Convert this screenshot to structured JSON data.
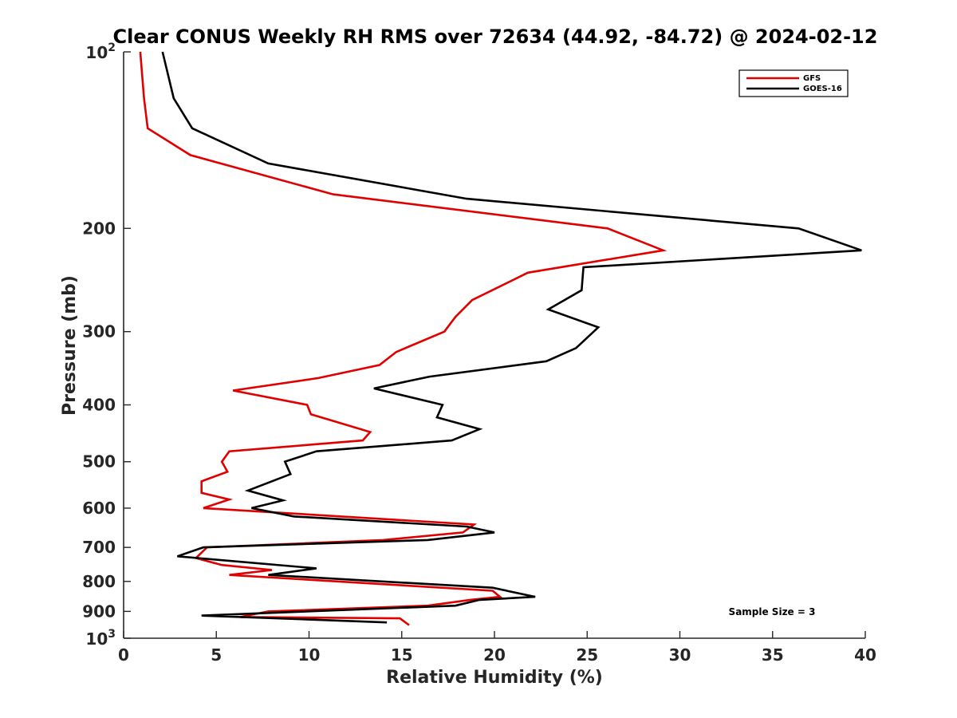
{
  "chart_data": {
    "type": "line",
    "title": "Clear CONUS Weekly RH RMS over 72634 (44.92, -84.72) @ 2024-02-12",
    "xlabel": "Relative Humidity (%)",
    "ylabel": "Pressure (mb)",
    "xlim": [
      0,
      40
    ],
    "ylim": [
      100,
      1000
    ],
    "yscale": "log",
    "y_reversed": true,
    "x_ticks": [
      0,
      5,
      10,
      15,
      20,
      25,
      30,
      35,
      40
    ],
    "x_tick_labels": [
      "0",
      "5",
      "10",
      "15",
      "20",
      "25",
      "30",
      "35",
      "40"
    ],
    "y_ticks": [
      100,
      200,
      300,
      400,
      500,
      600,
      700,
      800,
      900,
      1000
    ],
    "y_tick_labels": [
      {
        "base": "10",
        "exp": "2"
      },
      {
        "base": "200",
        "exp": ""
      },
      {
        "base": "300",
        "exp": ""
      },
      {
        "base": "400",
        "exp": ""
      },
      {
        "base": "500",
        "exp": ""
      },
      {
        "base": "600",
        "exp": ""
      },
      {
        "base": "700",
        "exp": ""
      },
      {
        "base": "800",
        "exp": ""
      },
      {
        "base": "900",
        "exp": ""
      },
      {
        "base": "10",
        "exp": "3"
      }
    ],
    "grid": false,
    "legend_position": "top-right",
    "annotation": "Sample Size = 3",
    "series": [
      {
        "name": "GFS",
        "color": "#e00000",
        "points": [
          [
            0.9,
            100
          ],
          [
            1.1,
            120
          ],
          [
            1.3,
            135
          ],
          [
            3.6,
            150
          ],
          [
            11.3,
            175
          ],
          [
            26.1,
            200
          ],
          [
            29.1,
            218
          ],
          [
            21.8,
            238
          ],
          [
            18.8,
            265
          ],
          [
            17.9,
            283
          ],
          [
            17.3,
            300
          ],
          [
            14.7,
            325
          ],
          [
            13.8,
            342
          ],
          [
            10.5,
            360
          ],
          [
            5.9,
            378
          ],
          [
            9.9,
            400
          ],
          [
            10.1,
            415
          ],
          [
            13.3,
            445
          ],
          [
            12.9,
            460
          ],
          [
            5.7,
            480
          ],
          [
            5.3,
            500
          ],
          [
            5.6,
            520
          ],
          [
            4.2,
            540
          ],
          [
            4.2,
            565
          ],
          [
            5.7,
            580
          ],
          [
            4.3,
            600
          ],
          [
            18.9,
            640
          ],
          [
            18.3,
            660
          ],
          [
            14.0,
            680
          ],
          [
            4.5,
            700
          ],
          [
            3.9,
            730
          ],
          [
            5.3,
            750
          ],
          [
            8.0,
            765
          ],
          [
            5.7,
            780
          ],
          [
            19.9,
            830
          ],
          [
            20.3,
            850
          ],
          [
            18.7,
            860
          ],
          [
            16.4,
            880
          ],
          [
            7.8,
            900
          ],
          [
            6.3,
            920
          ],
          [
            14.9,
            925
          ],
          [
            15.4,
            950
          ]
        ]
      },
      {
        "name": "GOES-16",
        "color": "#000000",
        "points": [
          [
            2.1,
            100
          ],
          [
            2.7,
            120
          ],
          [
            3.7,
            135
          ],
          [
            7.8,
            155
          ],
          [
            18.5,
            178
          ],
          [
            36.4,
            200
          ],
          [
            39.8,
            218
          ],
          [
            24.8,
            233
          ],
          [
            24.7,
            255
          ],
          [
            22.9,
            275
          ],
          [
            25.6,
            295
          ],
          [
            24.4,
            320
          ],
          [
            22.8,
            337
          ],
          [
            16.5,
            358
          ],
          [
            13.5,
            375
          ],
          [
            17.2,
            400
          ],
          [
            16.9,
            420
          ],
          [
            19.2,
            440
          ],
          [
            17.7,
            460
          ],
          [
            10.4,
            480
          ],
          [
            8.7,
            500
          ],
          [
            9.0,
            525
          ],
          [
            6.7,
            560
          ],
          [
            8.6,
            582
          ],
          [
            6.9,
            600
          ],
          [
            9.2,
            620
          ],
          [
            18.5,
            645
          ],
          [
            20.0,
            660
          ],
          [
            16.4,
            680
          ],
          [
            4.3,
            700
          ],
          [
            2.9,
            725
          ],
          [
            10.4,
            760
          ],
          [
            7.8,
            780
          ],
          [
            19.9,
            820
          ],
          [
            22.2,
            850
          ],
          [
            19.2,
            860
          ],
          [
            17.9,
            880
          ],
          [
            4.2,
            915
          ],
          [
            14.2,
            940
          ]
        ]
      }
    ]
  }
}
